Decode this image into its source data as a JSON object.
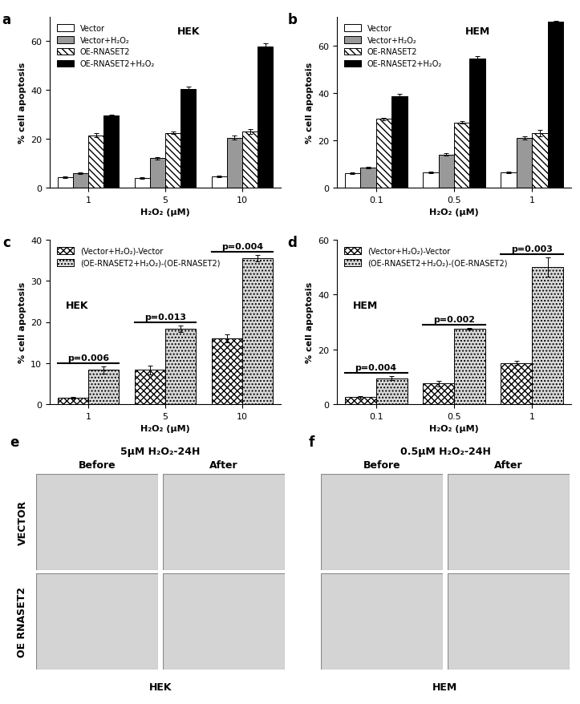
{
  "chart_data": [
    {
      "type": "bar",
      "title": "a",
      "annotations": [
        "HEK"
      ],
      "categories": [
        "1",
        "5",
        "10"
      ],
      "xlabel": "H₂O₂ (μM)",
      "ylabel": "% cell apoptosis",
      "ylim": [
        0,
        70
      ],
      "yticks": [
        0,
        20,
        40,
        60
      ],
      "legend": "upper left",
      "series": [
        {
          "name": "Vector",
          "color": "#ffffff",
          "values": [
            4.2,
            4.0,
            4.6
          ],
          "errors": [
            0.3,
            0.3,
            0.3
          ]
        },
        {
          "name": "Vector+H₂O₂",
          "color": "#999999",
          "values": [
            6.0,
            12.0,
            20.5
          ],
          "errors": [
            0.4,
            0.6,
            0.9
          ]
        },
        {
          "name": "OE-RNASET2",
          "color": "#ffffff",
          "values": [
            21.5,
            22.5,
            23.0
          ],
          "errors": [
            0.9,
            0.6,
            1.0
          ]
        },
        {
          "name": "OE-RNASET2+H₂O₂",
          "color": "#000000",
          "values": [
            29.5,
            40.5,
            58.0
          ],
          "errors": [
            0.5,
            1.0,
            1.0
          ]
        }
      ]
    },
    {
      "type": "bar",
      "title": "b",
      "annotations": [
        "HEM"
      ],
      "categories": [
        "0.1",
        "0.5",
        "1"
      ],
      "xlabel": "H₂O₂ (μM)",
      "ylabel": "% cell apoptosis",
      "ylim": [
        0,
        72
      ],
      "yticks": [
        0,
        20,
        40,
        60
      ],
      "legend": "upper left",
      "series": [
        {
          "name": "Vector",
          "color": "#ffffff",
          "values": [
            6.0,
            6.5,
            6.5
          ],
          "errors": [
            0.3,
            0.3,
            0.4
          ]
        },
        {
          "name": "Vector+H₂O₂",
          "color": "#999999",
          "values": [
            8.5,
            14.0,
            21.0
          ],
          "errors": [
            0.4,
            0.6,
            0.8
          ]
        },
        {
          "name": "OE-RNASET2",
          "color": "#ffffff",
          "values": [
            29.0,
            27.5,
            23.0
          ],
          "errors": [
            0.5,
            0.5,
            1.5
          ]
        },
        {
          "name": "OE-RNASET2+H₂O₂",
          "color": "#000000",
          "values": [
            38.5,
            54.5,
            70.0
          ],
          "errors": [
            1.0,
            0.8,
            0.3
          ]
        }
      ]
    },
    {
      "type": "bar",
      "title": "c",
      "annotations": [
        "HEK"
      ],
      "categories": [
        "1",
        "5",
        "10"
      ],
      "xlabel": "H₂O₂ (μM)",
      "ylabel": "% cell apoptosis",
      "ylim": [
        0,
        40
      ],
      "yticks": [
        0,
        10,
        20,
        30,
        40
      ],
      "legend": "upper left",
      "p_values": [
        "p=0.006",
        "p=0.013",
        "p=0.004"
      ],
      "series": [
        {
          "name": "(Vector+H₂O₂)-Vector",
          "color": "#ffffff",
          "values": [
            1.5,
            8.3,
            16.0
          ],
          "errors": [
            0.2,
            1.0,
            1.0
          ]
        },
        {
          "name": "(OE-RNASET2+H₂O₂)-(OE-RNASET2)",
          "color": "#d9d9d9",
          "values": [
            8.3,
            18.3,
            35.5
          ],
          "errors": [
            0.8,
            0.8,
            0.8
          ]
        }
      ]
    },
    {
      "type": "bar",
      "title": "d",
      "annotations": [
        "HEM"
      ],
      "categories": [
        "0.1",
        "0.5",
        "1"
      ],
      "xlabel": "H₂O₂ (μM)",
      "ylabel": "% cell apoptosis",
      "ylim": [
        0,
        60
      ],
      "yticks": [
        0,
        20,
        40,
        60
      ],
      "legend": "upper left",
      "p_values": [
        "p=0.004",
        "p=0.002",
        "p=0.003"
      ],
      "series": [
        {
          "name": "(Vector+H₂O₂)-Vector",
          "color": "#ffffff",
          "values": [
            2.5,
            7.5,
            15.0
          ],
          "errors": [
            0.5,
            1.0,
            0.8
          ]
        },
        {
          "name": "(OE-RNASET2+H₂O₂)-(OE-RNASET2)",
          "color": "#d9d9d9",
          "values": [
            9.5,
            27.5,
            50.0
          ],
          "errors": [
            0.6,
            0.3,
            3.5
          ]
        }
      ]
    }
  ],
  "images": [
    {
      "title": "e",
      "heading": "5μM H₂O₂-24H",
      "columns": [
        "Before",
        "After"
      ],
      "rows": [
        "VECTOR",
        "OE RNASET2"
      ],
      "caption": "HEK"
    },
    {
      "title": "f",
      "heading": "0.5μM H₂O₂-24H",
      "columns": [
        "Before",
        "After"
      ],
      "rows": [],
      "caption": "HEM"
    }
  ]
}
